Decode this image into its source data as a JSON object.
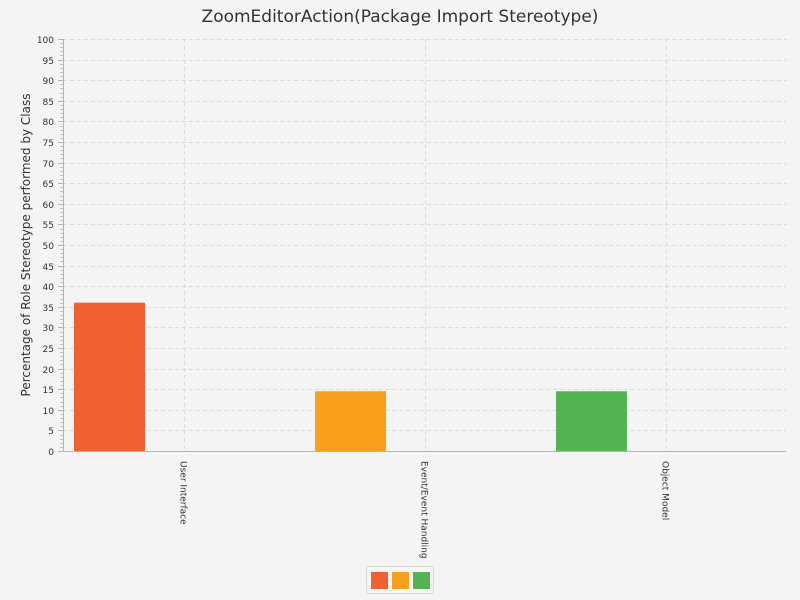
{
  "chart_data": {
    "type": "bar",
    "title": "ZoomEditorAction(Package Import Stereotype)",
    "ylabel": "Percentage of Role Stereotype performed by Class",
    "xlabel": "",
    "categories": [
      "User Interface",
      "Event/Event Handling",
      "Object Model"
    ],
    "values": [
      36,
      14.5,
      14.5
    ],
    "colors": [
      "#f06030",
      "#f8a01c",
      "#54b454"
    ],
    "ylim": [
      0,
      100
    ],
    "ytick_step": 5,
    "grid": true,
    "legend": "bottom-center"
  }
}
